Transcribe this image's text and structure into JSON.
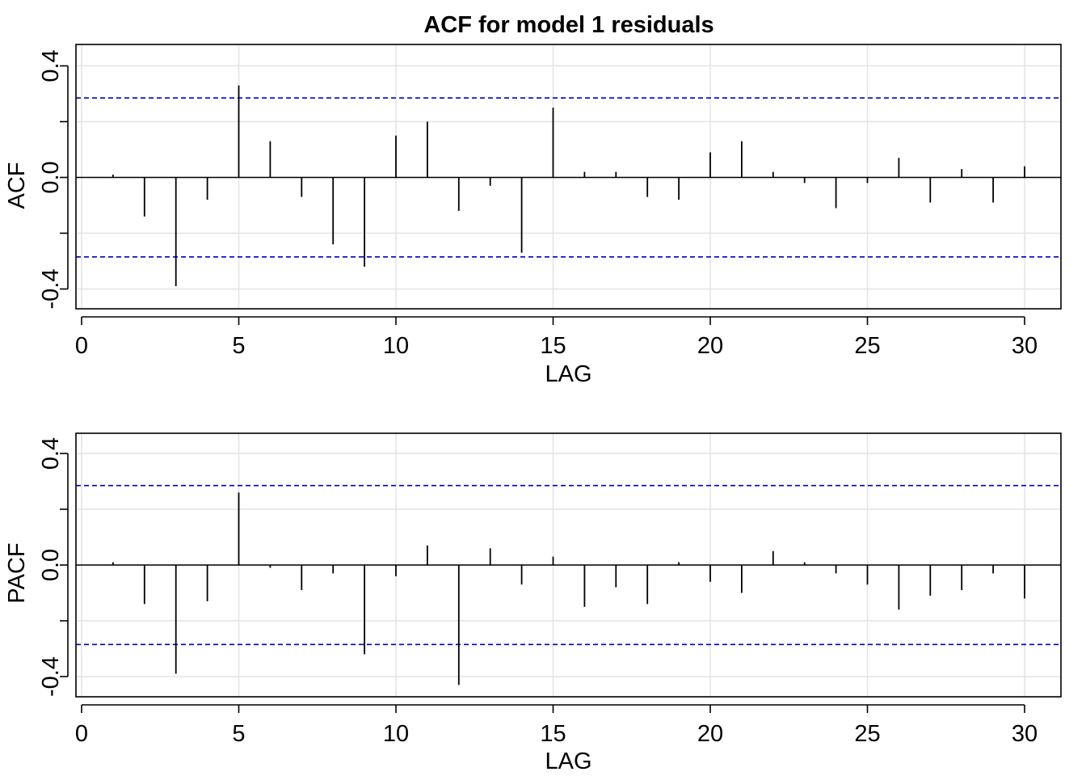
{
  "title": "ACF for model 1 residuals",
  "colors": {
    "grid": "#e3e3e3",
    "bounds": "#0000cc",
    "spike": "#000000",
    "frame": "#000000"
  },
  "chart_data": [
    {
      "type": "bar",
      "variant": "acf-spikes",
      "title": "ACF for model 1 residuals",
      "xlabel": "LAG",
      "ylabel": "ACF",
      "xlim": [
        0,
        30
      ],
      "ylim": [
        -0.47,
        0.47
      ],
      "xticks": [
        0,
        5,
        10,
        15,
        20,
        25,
        30
      ],
      "xtick_labels": [
        "0",
        "5",
        "10",
        "15",
        "20",
        "25",
        "30"
      ],
      "yticks": [
        -0.4,
        0.0,
        0.4
      ],
      "ytick_labels": [
        "-0.4",
        "0.0",
        "0.4"
      ],
      "grid": true,
      "confidence_bound": 0.285,
      "lags": [
        1,
        2,
        3,
        4,
        5,
        6,
        7,
        8,
        9,
        10,
        11,
        12,
        13,
        14,
        15,
        16,
        17,
        18,
        19,
        20,
        21,
        22,
        23,
        24,
        25,
        26,
        27,
        28,
        29,
        30
      ],
      "values": [
        0.01,
        -0.14,
        -0.39,
        -0.08,
        0.33,
        0.13,
        -0.07,
        -0.24,
        -0.32,
        0.15,
        0.2,
        -0.12,
        -0.03,
        -0.27,
        0.25,
        0.02,
        0.02,
        -0.07,
        -0.08,
        0.09,
        0.13,
        0.02,
        -0.02,
        -0.11,
        -0.02,
        0.07,
        -0.09,
        0.03,
        -0.09,
        0.04
      ]
    },
    {
      "type": "bar",
      "variant": "pacf-spikes",
      "title": "",
      "xlabel": "LAG",
      "ylabel": "PACF",
      "xlim": [
        0,
        30
      ],
      "ylim": [
        -0.47,
        0.47
      ],
      "xticks": [
        0,
        5,
        10,
        15,
        20,
        25,
        30
      ],
      "xtick_labels": [
        "0",
        "5",
        "10",
        "15",
        "20",
        "25",
        "30"
      ],
      "yticks": [
        -0.4,
        0.0,
        0.4
      ],
      "ytick_labels": [
        "-0.4",
        "0.0",
        "0.4"
      ],
      "grid": true,
      "confidence_bound": 0.285,
      "lags": [
        1,
        2,
        3,
        4,
        5,
        6,
        7,
        8,
        9,
        10,
        11,
        12,
        13,
        14,
        15,
        16,
        17,
        18,
        19,
        20,
        21,
        22,
        23,
        24,
        25,
        26,
        27,
        28,
        29,
        30
      ],
      "values": [
        0.01,
        -0.14,
        -0.39,
        -0.13,
        0.26,
        -0.01,
        -0.09,
        -0.03,
        -0.32,
        -0.04,
        0.07,
        -0.43,
        0.06,
        -0.07,
        0.03,
        -0.15,
        -0.08,
        -0.14,
        0.01,
        -0.06,
        -0.1,
        0.05,
        0.01,
        -0.03,
        -0.07,
        -0.16,
        -0.11,
        -0.09,
        -0.03,
        -0.12
      ]
    }
  ]
}
